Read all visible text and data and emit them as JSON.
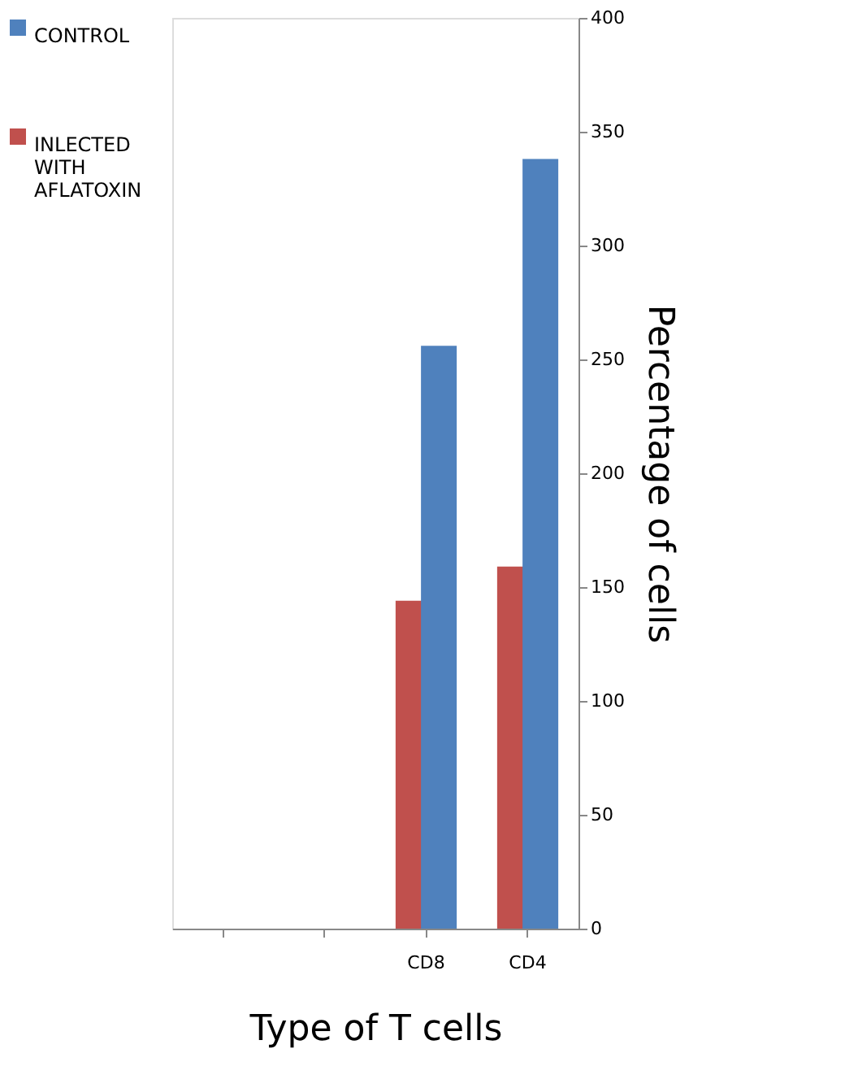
{
  "chart_data": {
    "type": "bar",
    "xlabel": "Type of T cells",
    "ylabel": "Percentage of cells",
    "categories": [
      null,
      null,
      "CD8",
      "CD4"
    ],
    "series": [
      {
        "name": "INLECTED WITH AFLATOXIN",
        "color": "#c0504d",
        "values": [
          null,
          null,
          144,
          159
        ]
      },
      {
        "name": "CONTROL",
        "color": "#4f81bd",
        "values": [
          null,
          null,
          256,
          338
        ]
      }
    ],
    "ylim": [
      0,
      400
    ],
    "yticks": [
      0,
      50,
      100,
      150,
      200,
      250,
      300,
      350,
      400
    ],
    "grid": false,
    "legend": "left"
  }
}
